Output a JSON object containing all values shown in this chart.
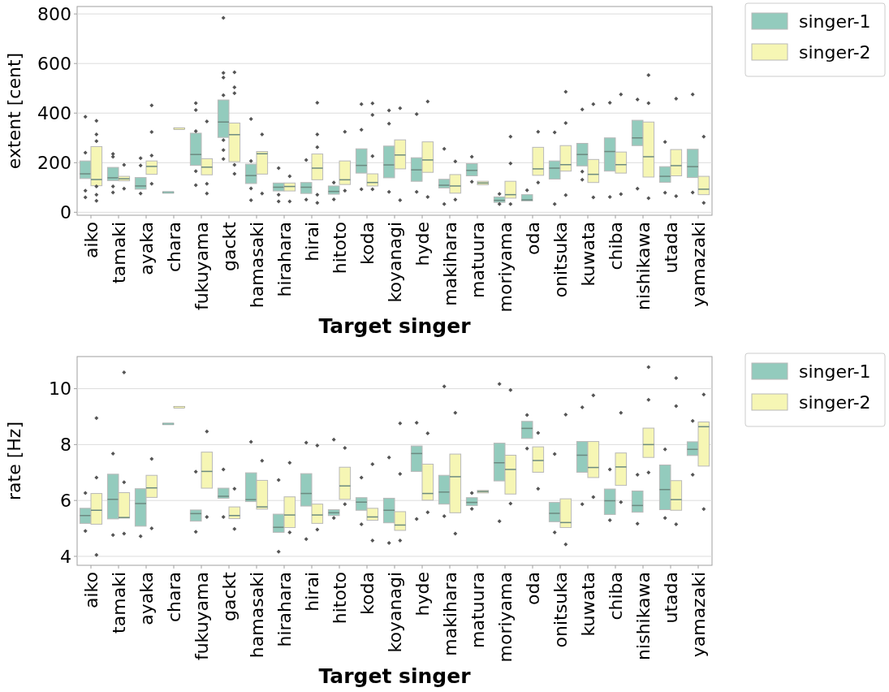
{
  "chart_data": [
    {
      "type": "box",
      "ylabel": "extent [cent]",
      "xlabel": "Target singer",
      "categories": [
        "aiko",
        "tamaki",
        "ayaka",
        "chara",
        "fukuyama",
        "gackt",
        "hamasaki",
        "hirahara",
        "hirai",
        "hitoto",
        "koda",
        "koyanagi",
        "hyde",
        "makihara",
        "matuura",
        "moriyama",
        "oda",
        "onitsuka",
        "kuwata",
        "chiba",
        "nishikawa",
        "utada",
        "yamazaki"
      ],
      "ylim": [
        -12,
        830
      ],
      "yticks": [
        0,
        200,
        400,
        600,
        800
      ],
      "grid": "y",
      "legend": "right",
      "series": [
        {
          "name": "singer-1",
          "color": "#93cbbd",
          "boxes": [
            {
              "low": 136,
              "q1": 136,
              "median": 155,
              "q3": 207,
              "high": 207,
              "outliers": [
                385,
                240,
                87,
                60
              ]
            },
            {
              "low": 128,
              "q1": 128,
              "median": 139,
              "q3": 181,
              "high": 181,
              "outliers": [
                235,
                224,
                104,
                80
              ]
            },
            {
              "low": 93,
              "q1": 93,
              "median": 106,
              "q3": 140,
              "high": 140,
              "outliers": [
                218,
                189,
                76
              ]
            },
            {
              "low": 80,
              "q1": 80,
              "median": 80,
              "q3": 80,
              "high": 80
            },
            {
              "low": 189,
              "q1": 189,
              "median": 233,
              "q3": 319,
              "high": 319,
              "outliers": [
                440,
                412,
                327,
                166,
                109
              ]
            },
            {
              "low": 302,
              "q1": 302,
              "median": 364,
              "q3": 453,
              "high": 453,
              "outliers": [
                784,
                562,
                543,
                472,
                291,
                251,
                215
              ]
            },
            {
              "low": 116,
              "q1": 116,
              "median": 148,
              "q3": 194,
              "high": 194,
              "outliers": [
                376,
                207,
                96,
                49
              ]
            },
            {
              "low": 86,
              "q1": 86,
              "median": 101,
              "q3": 118,
              "high": 118,
              "outliers": [
                178,
                71,
                44
              ]
            },
            {
              "low": 76,
              "q1": 76,
              "median": 101,
              "q3": 120,
              "high": 120,
              "outliers": [
                211,
                51
              ]
            },
            {
              "low": 73,
              "q1": 73,
              "median": 84,
              "q3": 106,
              "high": 106,
              "outliers": [
                120,
                52
              ]
            },
            {
              "low": 158,
              "q1": 158,
              "median": 189,
              "q3": 256,
              "high": 256,
              "outliers": [
                436,
                333,
                93
              ]
            },
            {
              "low": 139,
              "q1": 139,
              "median": 191,
              "q3": 267,
              "high": 267,
              "outliers": [
                411,
                357,
                82
              ]
            },
            {
              "low": 125,
              "q1": 125,
              "median": 171,
              "q3": 220,
              "high": 220,
              "outliers": [
                396,
                82
              ]
            },
            {
              "low": 98,
              "q1": 98,
              "median": 109,
              "q3": 133,
              "high": 133,
              "outliers": [
                256,
                33
              ]
            },
            {
              "low": 147,
              "q1": 147,
              "median": 169,
              "q3": 196,
              "high": 196,
              "outliers": [
                224,
                123
              ]
            },
            {
              "low": 40,
              "q1": 40,
              "median": 48,
              "q3": 62,
              "high": 62,
              "outliers": [
                74,
                33
              ]
            },
            {
              "low": 46,
              "q1": 46,
              "median": 50,
              "q3": 71,
              "high": 71,
              "outliers": [
                89
              ]
            },
            {
              "low": 134,
              "q1": 134,
              "median": 178,
              "q3": 207,
              "high": 207,
              "outliers": [
                322,
                33
              ]
            },
            {
              "low": 187,
              "q1": 187,
              "median": 233,
              "q3": 278,
              "high": 278,
              "outliers": [
                415,
                164,
                131
              ]
            },
            {
              "low": 166,
              "q1": 166,
              "median": 245,
              "q3": 300,
              "high": 300,
              "outliers": [
                442,
                62
              ]
            },
            {
              "low": 269,
              "q1": 269,
              "median": 300,
              "q3": 371,
              "high": 371,
              "outliers": [
                455,
                95
              ]
            },
            {
              "low": 121,
              "q1": 121,
              "median": 145,
              "q3": 184,
              "high": 184,
              "outliers": [
                284,
                79
              ]
            },
            {
              "low": 140,
              "q1": 140,
              "median": 184,
              "q3": 254,
              "high": 254,
              "outliers": [
                475,
                80
              ]
            }
          ]
        },
        {
          "name": "singer-2",
          "color": "#f6f6b4",
          "boxes": [
            {
              "low": 107,
              "q1": 107,
              "median": 132,
              "q3": 265,
              "high": 265,
              "outliers": [
                369,
                314,
                287,
                104,
                71,
                46
              ]
            },
            {
              "low": 127,
              "q1": 127,
              "median": 135,
              "q3": 145,
              "high": 145,
              "outliers": [
                191,
                95
              ]
            },
            {
              "low": 153,
              "q1": 153,
              "median": 185,
              "q3": 207,
              "high": 207,
              "outliers": [
                431,
                324,
                229,
                115
              ]
            },
            {
              "low": 337,
              "q1": 337,
              "median": 337,
              "q3": 337,
              "high": 337
            },
            {
              "low": 151,
              "q1": 151,
              "median": 182,
              "q3": 216,
              "high": 216,
              "outliers": [
                366,
                115,
                76
              ]
            },
            {
              "low": 204,
              "q1": 204,
              "median": 313,
              "q3": 360,
              "high": 360,
              "outliers": [
                565,
                504,
                480,
                191,
                155
              ]
            },
            {
              "low": 154,
              "q1": 154,
              "median": 236,
              "q3": 245,
              "high": 245,
              "outliers": [
                314,
                76
              ]
            },
            {
              "low": 86,
              "q1": 86,
              "median": 104,
              "q3": 118,
              "high": 118,
              "outliers": [
                145,
                44
              ]
            },
            {
              "low": 131,
              "q1": 131,
              "median": 178,
              "q3": 235,
              "high": 235,
              "outliers": [
                442,
                314,
                262,
                71,
                38
              ]
            },
            {
              "low": 112,
              "q1": 112,
              "median": 131,
              "q3": 207,
              "high": 207,
              "outliers": [
                325,
                87
              ]
            },
            {
              "low": 106,
              "q1": 106,
              "median": 120,
              "q3": 155,
              "high": 155,
              "outliers": [
                439,
                393,
                226,
                93
              ]
            },
            {
              "low": 175,
              "q1": 175,
              "median": 231,
              "q3": 292,
              "high": 292,
              "outliers": [
                420,
                49
              ]
            },
            {
              "low": 161,
              "q1": 161,
              "median": 211,
              "q3": 284,
              "high": 284,
              "outliers": [
                447,
                62
              ]
            },
            {
              "low": 77,
              "q1": 77,
              "median": 106,
              "q3": 152,
              "high": 152,
              "outliers": [
                205,
                51
              ]
            },
            {
              "low": 111,
              "q1": 111,
              "median": 118,
              "q3": 125,
              "high": 125
            },
            {
              "low": 57,
              "q1": 57,
              "median": 71,
              "q3": 125,
              "high": 125,
              "outliers": [
                305,
                197,
                33
              ]
            },
            {
              "low": 149,
              "q1": 149,
              "median": 175,
              "q3": 262,
              "high": 262,
              "outliers": [
                325,
                120
              ]
            },
            {
              "low": 166,
              "q1": 166,
              "median": 192,
              "q3": 269,
              "high": 269,
              "outliers": [
                486,
                360,
                69
              ]
            },
            {
              "low": 120,
              "q1": 120,
              "median": 153,
              "q3": 213,
              "high": 213,
              "outliers": [
                436,
                60
              ]
            },
            {
              "low": 158,
              "q1": 158,
              "median": 192,
              "q3": 243,
              "high": 243,
              "outliers": [
                475,
                73
              ]
            },
            {
              "low": 142,
              "q1": 142,
              "median": 224,
              "q3": 364,
              "high": 364,
              "outliers": [
                553,
                440,
                57
              ]
            },
            {
              "low": 147,
              "q1": 147,
              "median": 188,
              "q3": 253,
              "high": 253,
              "outliers": [
                458,
                65
              ]
            },
            {
              "low": 71,
              "q1": 71,
              "median": 93,
              "q3": 145,
              "high": 145,
              "outliers": [
                305,
                38
              ]
            }
          ]
        }
      ]
    },
    {
      "type": "box",
      "ylabel": "rate [Hz]",
      "xlabel": "Target singer",
      "categories": [
        "aiko",
        "tamaki",
        "ayaka",
        "chara",
        "fukuyama",
        "gackt",
        "hamasaki",
        "hirahara",
        "hirai",
        "hitoto",
        "koda",
        "koyanagi",
        "hyde",
        "makihara",
        "matuura",
        "moriyama",
        "oda",
        "onitsuka",
        "kuwata",
        "chiba",
        "nishikawa",
        "utada",
        "yamazaki"
      ],
      "ylim": [
        3.68,
        11.15
      ],
      "yticks": [
        4,
        6,
        8,
        10
      ],
      "grid": "y",
      "legend": "right",
      "series": [
        {
          "name": "singer-1",
          "color": "#93cbbd",
          "boxes": [
            {
              "low": 5.18,
              "q1": 5.18,
              "median": 5.46,
              "q3": 5.72,
              "high": 5.72,
              "outliers": [
                6.27,
                4.91
              ]
            },
            {
              "low": 5.34,
              "q1": 5.34,
              "median": 6.04,
              "q3": 6.94,
              "high": 6.94,
              "outliers": [
                7.68,
                4.76
              ]
            },
            {
              "low": 5.08,
              "q1": 5.08,
              "median": 5.89,
              "q3": 6.42,
              "high": 6.42,
              "outliers": [
                4.72
              ]
            },
            {
              "low": 8.74,
              "q1": 8.74,
              "median": 8.74,
              "q3": 8.74,
              "high": 8.74
            },
            {
              "low": 5.26,
              "q1": 5.26,
              "median": 5.53,
              "q3": 5.66,
              "high": 5.66,
              "outliers": [
                7.03,
                4.88
              ]
            },
            {
              "low": 6.08,
              "q1": 6.08,
              "median": 6.15,
              "q3": 6.44,
              "high": 6.44,
              "outliers": [
                7.11,
                5.41
              ]
            },
            {
              "low": 5.96,
              "q1": 5.96,
              "median": 6.03,
              "q3": 6.99,
              "high": 6.99,
              "outliers": [
                8.1
              ]
            },
            {
              "low": 4.86,
              "q1": 4.86,
              "median": 5.04,
              "q3": 5.51,
              "high": 5.51,
              "outliers": [
                6.73,
                4.17
              ]
            },
            {
              "low": 5.8,
              "q1": 5.8,
              "median": 6.25,
              "q3": 6.96,
              "high": 6.96,
              "outliers": [
                8.07,
                4.62
              ]
            },
            {
              "low": 5.46,
              "q1": 5.46,
              "median": 5.56,
              "q3": 5.67,
              "high": 5.67,
              "outliers": [
                8.18,
                5.37
              ]
            },
            {
              "low": 5.65,
              "q1": 5.65,
              "median": 5.94,
              "q3": 6.1,
              "high": 6.1,
              "outliers": [
                6.82,
                5.15
              ]
            },
            {
              "low": 5.2,
              "q1": 5.2,
              "median": 5.65,
              "q3": 6.08,
              "high": 6.08,
              "outliers": [
                7.54,
                4.48
              ]
            },
            {
              "low": 7.04,
              "q1": 7.04,
              "median": 7.68,
              "q3": 7.95,
              "high": 7.95,
              "outliers": [
                8.78,
                5.34
              ]
            },
            {
              "low": 5.87,
              "q1": 5.87,
              "median": 6.3,
              "q3": 6.9,
              "high": 6.9,
              "outliers": [
                10.08,
                5.44
              ]
            },
            {
              "low": 5.82,
              "q1": 5.82,
              "median": 5.93,
              "q3": 6.1,
              "high": 6.1,
              "outliers": [
                6.27,
                5.7
              ]
            },
            {
              "low": 6.7,
              "q1": 6.7,
              "median": 7.35,
              "q3": 8.05,
              "high": 8.05,
              "outliers": [
                10.17,
                5.26
              ]
            },
            {
              "low": 8.22,
              "q1": 8.22,
              "median": 8.58,
              "q3": 8.83,
              "high": 8.83,
              "outliers": [
                9.06,
                7.86
              ]
            },
            {
              "low": 5.24,
              "q1": 5.24,
              "median": 5.54,
              "q3": 5.93,
              "high": 5.93,
              "outliers": [
                7.66,
                4.86
              ]
            },
            {
              "low": 7.01,
              "q1": 7.01,
              "median": 7.62,
              "q3": 8.11,
              "high": 8.11,
              "outliers": [
                9.33,
                5.87
              ]
            },
            {
              "low": 5.5,
              "q1": 5.5,
              "median": 5.99,
              "q3": 6.41,
              "high": 6.41,
              "outliers": [
                7.11,
                5.29
              ]
            },
            {
              "low": 5.58,
              "q1": 5.58,
              "median": 5.82,
              "q3": 6.34,
              "high": 6.34,
              "outliers": [
                6.92,
                5.17
              ]
            },
            {
              "low": 5.67,
              "q1": 5.67,
              "median": 6.39,
              "q3": 7.27,
              "high": 7.27,
              "outliers": [
                7.83,
                5.37
              ]
            },
            {
              "low": 7.61,
              "q1": 7.61,
              "median": 7.83,
              "q3": 8.1,
              "high": 8.1,
              "outliers": [
                8.85,
                6.92
              ]
            }
          ]
        },
        {
          "name": "singer-2",
          "color": "#f6f6b4",
          "boxes": [
            {
              "low": 5.15,
              "q1": 5.15,
              "median": 5.65,
              "q3": 6.25,
              "high": 6.25,
              "outliers": [
                8.95,
                6.82,
                4.05
              ]
            },
            {
              "low": 5.37,
              "q1": 5.37,
              "median": 5.39,
              "q3": 6.28,
              "high": 6.28,
              "outliers": [
                10.58,
                6.65,
                4.81
              ]
            },
            {
              "low": 6.11,
              "q1": 6.11,
              "median": 6.45,
              "q3": 6.9,
              "high": 6.9,
              "outliers": [
                7.49,
                5.0
              ]
            },
            {
              "low": 9.34,
              "q1": 9.34,
              "median": 9.34,
              "q3": 9.34,
              "high": 9.34
            },
            {
              "low": 6.44,
              "q1": 6.44,
              "median": 7.04,
              "q3": 7.73,
              "high": 7.73,
              "outliers": [
                8.47,
                5.41
              ]
            },
            {
              "low": 5.35,
              "q1": 5.35,
              "median": 5.46,
              "q3": 5.77,
              "high": 5.77,
              "outliers": [
                6.42,
                4.98
              ]
            },
            {
              "low": 5.69,
              "q1": 5.69,
              "median": 5.77,
              "q3": 6.72,
              "high": 6.72,
              "outliers": [
                7.42
              ]
            },
            {
              "low": 5.03,
              "q1": 5.03,
              "median": 5.48,
              "q3": 6.13,
              "high": 6.13,
              "outliers": [
                7.35,
                4.86
              ]
            },
            {
              "low": 5.18,
              "q1": 5.18,
              "median": 5.48,
              "q3": 5.87,
              "high": 5.87,
              "outliers": [
                7.97,
                4.96
              ]
            },
            {
              "low": 6.04,
              "q1": 6.04,
              "median": 6.52,
              "q3": 7.19,
              "high": 7.19,
              "outliers": [
                7.88,
                5.87
              ]
            },
            {
              "low": 5.29,
              "q1": 5.29,
              "median": 5.41,
              "q3": 5.72,
              "high": 5.72,
              "outliers": [
                7.3,
                4.57
              ]
            },
            {
              "low": 4.93,
              "q1": 4.93,
              "median": 5.12,
              "q3": 5.6,
              "high": 5.6,
              "outliers": [
                8.76,
                6.95,
                4.57
              ]
            },
            {
              "low": 6.01,
              "q1": 6.01,
              "median": 6.25,
              "q3": 7.3,
              "high": 7.3,
              "outliers": [
                8.4,
                5.58
              ]
            },
            {
              "low": 5.56,
              "q1": 5.56,
              "median": 6.85,
              "q3": 7.66,
              "high": 7.66,
              "outliers": [
                9.14,
                4.81
              ]
            },
            {
              "low": 6.27,
              "q1": 6.27,
              "median": 6.32,
              "q3": 6.36,
              "high": 6.36
            },
            {
              "low": 6.23,
              "q1": 6.23,
              "median": 7.11,
              "q3": 7.62,
              "high": 7.62,
              "outliers": [
                9.95,
                5.89
              ]
            },
            {
              "low": 7.01,
              "q1": 7.01,
              "median": 7.43,
              "q3": 7.92,
              "high": 7.92,
              "outliers": [
                8.42,
                6.42
              ]
            },
            {
              "low": 5.03,
              "q1": 5.03,
              "median": 5.21,
              "q3": 6.06,
              "high": 6.06,
              "outliers": [
                9.07,
                4.43
              ]
            },
            {
              "low": 6.82,
              "q1": 6.82,
              "median": 7.18,
              "q3": 8.11,
              "high": 8.11,
              "outliers": [
                9.76,
                6.12
              ]
            },
            {
              "low": 6.54,
              "q1": 6.54,
              "median": 7.2,
              "q3": 7.7,
              "high": 7.7,
              "outliers": [
                9.14,
                5.94
              ]
            },
            {
              "low": 7.54,
              "q1": 7.54,
              "median": 8.0,
              "q3": 8.59,
              "high": 8.59,
              "outliers": [
                10.77,
                9.6,
                7.0
              ]
            },
            {
              "low": 5.65,
              "q1": 5.65,
              "median": 6.03,
              "q3": 6.71,
              "high": 6.71,
              "outliers": [
                10.38,
                9.38,
                5.15
              ]
            },
            {
              "low": 7.23,
              "q1": 7.23,
              "median": 8.64,
              "q3": 8.81,
              "high": 8.81,
              "outliers": [
                9.79,
                5.69
              ]
            }
          ]
        }
      ]
    }
  ]
}
